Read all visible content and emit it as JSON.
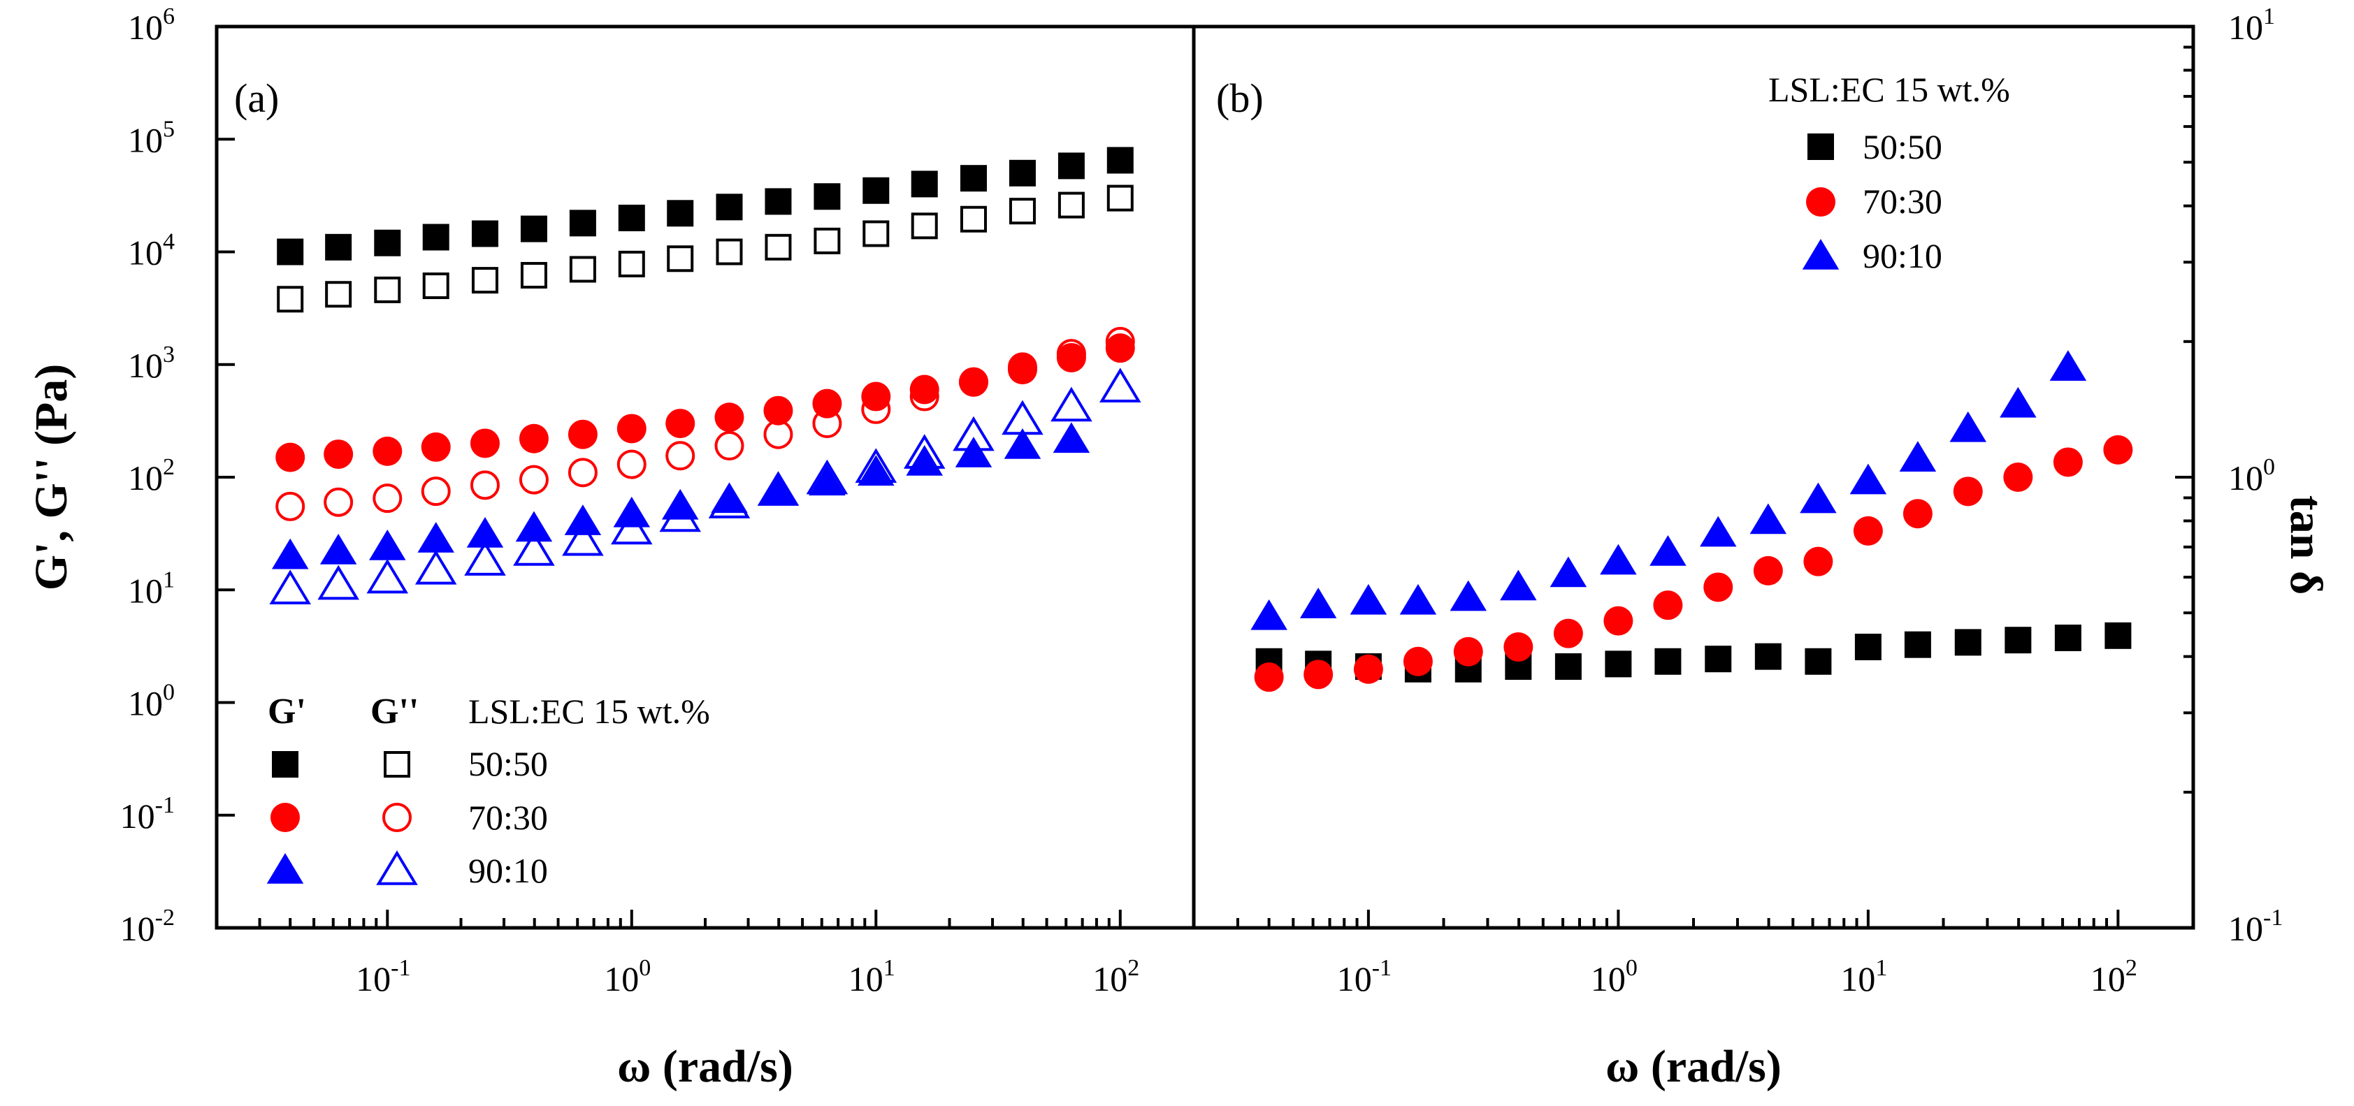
{
  "chart_data": [
    {
      "panel": "(a)",
      "type": "scatter",
      "xscale": "log",
      "yscale": "log",
      "xlabel": "ω (rad/s)",
      "ylabel": "G', G'' (Pa)",
      "xlim": [
        0.02,
        200
      ],
      "ylim": [
        0.01,
        1000000
      ],
      "x_ticks": [
        {
          "base": "10",
          "exp": "-1"
        },
        {
          "base": "10",
          "exp": "0"
        },
        {
          "base": "10",
          "exp": "1"
        },
        {
          "base": "10",
          "exp": "2"
        }
      ],
      "y_ticks": [
        {
          "base": "10",
          "exp": "-2"
        },
        {
          "base": "10",
          "exp": "-1"
        },
        {
          "base": "10",
          "exp": "0"
        },
        {
          "base": "10",
          "exp": "1"
        },
        {
          "base": "10",
          "exp": "2"
        },
        {
          "base": "10",
          "exp": "3"
        },
        {
          "base": "10",
          "exp": "4"
        },
        {
          "base": "10",
          "exp": "5"
        },
        {
          "base": "10",
          "exp": "6"
        }
      ],
      "legend": {
        "col1": "G'",
        "col2": "G''",
        "title": "LSL:EC 15 wt.%",
        "entries": [
          "50:50",
          "70:30",
          "90:10"
        ]
      },
      "x": [
        0.04,
        0.063,
        0.1,
        0.158,
        0.251,
        0.398,
        0.631,
        1,
        1.58,
        2.51,
        3.98,
        6.31,
        10,
        15.8,
        25.1,
        39.8,
        63.1,
        100
      ],
      "series": [
        {
          "name": "G' 50:50",
          "marker": "square",
          "filled": true,
          "color": "#000000",
          "values": [
            10000,
            11000,
            12000,
            13500,
            14500,
            16000,
            18000,
            20000,
            22000,
            25000,
            28000,
            31000,
            35000,
            40000,
            45000,
            50000,
            58000,
            65000
          ]
        },
        {
          "name": "G'' 50:50",
          "marker": "square",
          "filled": false,
          "color": "#000000",
          "values": [
            3800,
            4200,
            4600,
            5000,
            5600,
            6200,
            7000,
            7800,
            8700,
            10000,
            11000,
            12500,
            14500,
            17000,
            19500,
            23000,
            26000,
            30000
          ]
        },
        {
          "name": "G' 70:30",
          "marker": "circle",
          "filled": true,
          "color": "#ff0000",
          "values": [
            150,
            160,
            170,
            185,
            200,
            220,
            240,
            270,
            300,
            340,
            390,
            450,
            520,
            600,
            700,
            900,
            1150,
            1400
          ]
        },
        {
          "name": "G'' 70:30",
          "marker": "circle",
          "filled": false,
          "color": "#ff0000",
          "values": [
            55,
            60,
            65,
            75,
            85,
            95,
            110,
            130,
            155,
            190,
            240,
            300,
            400,
            520,
            700,
            950,
            1250,
            1600
          ]
        },
        {
          "name": "G' 90:10",
          "marker": "triangle",
          "filled": true,
          "color": "#0000ff",
          "values": [
            20,
            22,
            24,
            28,
            31,
            35,
            40,
            47,
            55,
            63,
            75,
            90,
            110,
            135,
            160,
            190,
            215,
            null
          ]
        },
        {
          "name": "G'' 90:10",
          "marker": "triangle",
          "filled": false,
          "color": "#0000ff",
          "values": [
            10,
            11,
            12.5,
            15,
            18,
            22,
            27,
            34,
            44,
            58,
            75,
            95,
            120,
            160,
            230,
            320,
            420,
            620
          ]
        }
      ]
    },
    {
      "panel": "(b)",
      "type": "scatter",
      "xscale": "log",
      "yscale": "log",
      "xlabel": "ω (rad/s)",
      "ylabel": "tan δ",
      "xlim": [
        0.02,
        200
      ],
      "ylim": [
        0.1,
        10
      ],
      "x_ticks": [
        {
          "base": "10",
          "exp": "-1"
        },
        {
          "base": "10",
          "exp": "0"
        },
        {
          "base": "10",
          "exp": "1"
        },
        {
          "base": "10",
          "exp": "2"
        }
      ],
      "y_ticks": [
        {
          "base": "10",
          "exp": "-1"
        },
        {
          "base": "10",
          "exp": "0"
        },
        {
          "base": "10",
          "exp": "1"
        }
      ],
      "legend": {
        "title": "LSL:EC 15 wt.%",
        "entries": [
          "50:50",
          "70:30",
          "90:10"
        ]
      },
      "x": [
        0.04,
        0.063,
        0.1,
        0.158,
        0.251,
        0.398,
        0.631,
        1,
        1.58,
        2.51,
        3.98,
        6.31,
        10,
        15.8,
        25.1,
        39.8,
        63.1,
        100
      ],
      "series": [
        {
          "name": "50:50",
          "marker": "square",
          "filled": true,
          "color": "#000000",
          "values": [
            0.39,
            0.385,
            0.38,
            0.375,
            0.375,
            0.38,
            0.38,
            0.385,
            0.39,
            0.395,
            0.4,
            0.39,
            0.42,
            0.425,
            0.43,
            0.435,
            0.44,
            0.445
          ]
        },
        {
          "name": "70:30",
          "marker": "circle",
          "filled": true,
          "color": "#ff0000",
          "values": [
            0.36,
            0.365,
            0.375,
            0.39,
            0.41,
            0.42,
            0.45,
            0.48,
            0.52,
            0.57,
            0.62,
            0.65,
            0.76,
            0.83,
            0.93,
            1.0,
            1.08,
            1.15
          ]
        },
        {
          "name": "90:10",
          "marker": "triangle",
          "filled": true,
          "color": "#0000ff",
          "values": [
            0.49,
            0.52,
            0.53,
            0.53,
            0.54,
            0.57,
            0.61,
            0.65,
            0.68,
            0.75,
            0.8,
            0.89,
            0.98,
            1.1,
            1.28,
            1.45,
            1.75,
            null
          ]
        }
      ]
    }
  ]
}
